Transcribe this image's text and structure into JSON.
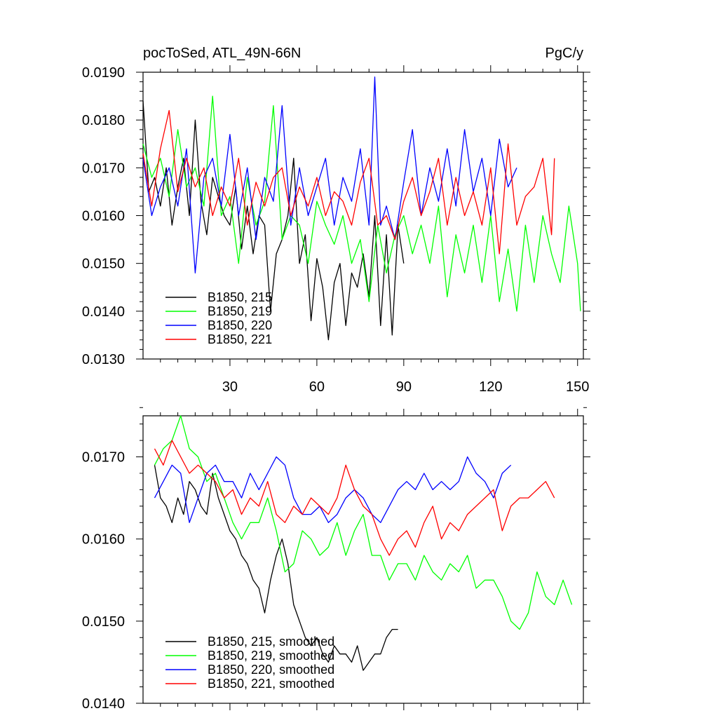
{
  "figure": {
    "left_title": "pocToSed, ATL_49N-66N",
    "right_title": "PgC/y"
  },
  "chart_data": [
    {
      "type": "line",
      "title": "pocToSed, ATL_49N-66N",
      "units": "PgC/y",
      "xlim": [
        0,
        152
      ],
      "ylim": [
        0.013,
        0.019
      ],
      "xticks": [
        30,
        60,
        90,
        120,
        150
      ],
      "xtick_labels": [
        "30",
        "60",
        "90",
        "120",
        "150"
      ],
      "yticks": [
        0.013,
        0.014,
        0.015,
        0.016,
        0.017,
        0.018,
        0.019
      ],
      "ytick_labels": [
        "0.0130",
        "0.0140",
        "0.0150",
        "0.0160",
        "0.0170",
        "0.0180",
        "0.0190"
      ],
      "legend_position": "bottom-left",
      "series": [
        {
          "name": "B1850, 215",
          "color": "#000000",
          "x": [
            0,
            2,
            4,
            6,
            8,
            10,
            12,
            14,
            16,
            18,
            20,
            22,
            24,
            26,
            28,
            30,
            32,
            34,
            36,
            38,
            40,
            42,
            44,
            46,
            48,
            50,
            52,
            54,
            56,
            58,
            60,
            62,
            64,
            66,
            68,
            70,
            72,
            74,
            76,
            78,
            80,
            82,
            84,
            86,
            88,
            90
          ],
          "y": [
            0.0184,
            0.0165,
            0.0168,
            0.0162,
            0.017,
            0.0158,
            0.0166,
            0.0172,
            0.016,
            0.018,
            0.0163,
            0.0156,
            0.0168,
            0.0164,
            0.016,
            0.0158,
            0.0166,
            0.0153,
            0.0162,
            0.0152,
            0.016,
            0.0158,
            0.014,
            0.0152,
            0.0155,
            0.016,
            0.0172,
            0.015,
            0.0156,
            0.0138,
            0.0151,
            0.0145,
            0.0134,
            0.0146,
            0.015,
            0.0137,
            0.0148,
            0.0145,
            0.0152,
            0.0143,
            0.016,
            0.0137,
            0.0156,
            0.0135,
            0.0158,
            0.015
          ]
        },
        {
          "name": "B1850, 219",
          "color": "#00ff00",
          "x": [
            0,
            3,
            6,
            9,
            12,
            15,
            18,
            21,
            24,
            27,
            30,
            33,
            36,
            39,
            42,
            45,
            48,
            51,
            54,
            57,
            60,
            63,
            66,
            69,
            72,
            75,
            78,
            81,
            84,
            87,
            90,
            93,
            96,
            99,
            102,
            105,
            108,
            111,
            114,
            117,
            120,
            123,
            126,
            129,
            132,
            135,
            138,
            141,
            144,
            147,
            150,
            151
          ],
          "y": [
            0.0175,
            0.0168,
            0.0172,
            0.0164,
            0.0178,
            0.0166,
            0.017,
            0.0162,
            0.0185,
            0.016,
            0.0164,
            0.015,
            0.0168,
            0.0158,
            0.0163,
            0.0183,
            0.0155,
            0.016,
            0.0158,
            0.015,
            0.0163,
            0.0158,
            0.0154,
            0.016,
            0.015,
            0.0155,
            0.0142,
            0.0158,
            0.0148,
            0.0156,
            0.016,
            0.0152,
            0.0158,
            0.015,
            0.0162,
            0.0143,
            0.0156,
            0.0148,
            0.0158,
            0.0146,
            0.016,
            0.0142,
            0.0153,
            0.014,
            0.0158,
            0.0146,
            0.016,
            0.0152,
            0.0146,
            0.0162,
            0.015,
            0.014
          ]
        },
        {
          "name": "B1850, 220",
          "color": "#0000ff",
          "x": [
            0,
            3,
            6,
            9,
            12,
            15,
            18,
            21,
            24,
            27,
            30,
            33,
            36,
            39,
            42,
            45,
            48,
            51,
            54,
            57,
            60,
            63,
            66,
            69,
            72,
            75,
            78,
            80,
            82,
            84,
            87,
            90,
            93,
            96,
            99,
            102,
            105,
            108,
            111,
            114,
            117,
            120,
            123,
            126,
            129
          ],
          "y": [
            0.0172,
            0.016,
            0.0166,
            0.017,
            0.0162,
            0.0174,
            0.0148,
            0.0168,
            0.0172,
            0.0162,
            0.0177,
            0.016,
            0.017,
            0.0155,
            0.0168,
            0.0163,
            0.0183,
            0.0158,
            0.017,
            0.016,
            0.0166,
            0.0172,
            0.0158,
            0.0168,
            0.0163,
            0.0174,
            0.0158,
            0.0189,
            0.0158,
            0.0162,
            0.0155,
            0.0167,
            0.0178,
            0.016,
            0.017,
            0.0163,
            0.0174,
            0.0162,
            0.0178,
            0.0165,
            0.0172,
            0.016,
            0.0176,
            0.0166,
            0.017
          ]
        },
        {
          "name": "B1850, 221",
          "color": "#ff0000",
          "x": [
            0,
            3,
            6,
            9,
            12,
            15,
            18,
            21,
            24,
            27,
            30,
            33,
            36,
            39,
            42,
            45,
            48,
            51,
            54,
            57,
            60,
            63,
            66,
            69,
            72,
            75,
            78,
            81,
            84,
            87,
            90,
            93,
            96,
            99,
            102,
            105,
            108,
            111,
            114,
            117,
            120,
            123,
            126,
            129,
            132,
            135,
            138,
            141,
            142
          ],
          "y": [
            0.0173,
            0.0162,
            0.0174,
            0.0182,
            0.0165,
            0.0172,
            0.0166,
            0.017,
            0.016,
            0.0166,
            0.0162,
            0.0172,
            0.0158,
            0.0167,
            0.0162,
            0.0168,
            0.017,
            0.016,
            0.0166,
            0.0162,
            0.0168,
            0.016,
            0.0165,
            0.0163,
            0.0158,
            0.0167,
            0.0172,
            0.0158,
            0.016,
            0.0155,
            0.0163,
            0.0168,
            0.016,
            0.0165,
            0.0172,
            0.0158,
            0.0168,
            0.016,
            0.0165,
            0.0158,
            0.017,
            0.0152,
            0.0175,
            0.0158,
            0.0164,
            0.0166,
            0.0172,
            0.0156,
            0.0172
          ]
        }
      ]
    },
    {
      "type": "line",
      "xlim": [
        0,
        152
      ],
      "ylim": [
        0.014,
        0.0175
      ],
      "xticks": [
        30,
        60,
        90,
        120,
        150
      ],
      "yticks": [
        0.014,
        0.015,
        0.016,
        0.017
      ],
      "ytick_labels": [
        "0.0140",
        "0.0150",
        "0.0160",
        "0.0170"
      ],
      "legend_position": "bottom-left",
      "series": [
        {
          "name": "B1850, 215, smoothed",
          "color": "#000000",
          "x": [
            4,
            6,
            8,
            10,
            12,
            14,
            16,
            18,
            20,
            22,
            24,
            26,
            28,
            30,
            32,
            34,
            36,
            38,
            40,
            42,
            44,
            46,
            48,
            50,
            52,
            54,
            56,
            58,
            60,
            62,
            64,
            66,
            68,
            70,
            72,
            74,
            76,
            78,
            80,
            82,
            84,
            86,
            88
          ],
          "y": [
            0.0169,
            0.0165,
            0.0164,
            0.0162,
            0.0165,
            0.0163,
            0.0167,
            0.0166,
            0.0164,
            0.0163,
            0.0168,
            0.0165,
            0.0163,
            0.0161,
            0.016,
            0.0158,
            0.0157,
            0.0155,
            0.0154,
            0.0151,
            0.0155,
            0.0158,
            0.016,
            0.0157,
            0.0152,
            0.015,
            0.0148,
            0.0147,
            0.0148,
            0.0146,
            0.0145,
            0.0147,
            0.0146,
            0.0146,
            0.0145,
            0.0147,
            0.0144,
            0.0145,
            0.0146,
            0.0146,
            0.0148,
            0.0149,
            0.0149
          ]
        },
        {
          "name": "B1850, 219, smoothed",
          "color": "#00ff00",
          "x": [
            4,
            7,
            10,
            13,
            16,
            19,
            22,
            25,
            28,
            31,
            34,
            37,
            40,
            43,
            46,
            49,
            52,
            55,
            58,
            61,
            64,
            67,
            70,
            73,
            76,
            79,
            82,
            85,
            88,
            91,
            94,
            97,
            100,
            103,
            106,
            109,
            112,
            115,
            118,
            121,
            124,
            127,
            130,
            133,
            136,
            139,
            142,
            145,
            148
          ],
          "y": [
            0.0169,
            0.0171,
            0.0172,
            0.0175,
            0.0171,
            0.017,
            0.0167,
            0.0168,
            0.0165,
            0.0162,
            0.016,
            0.0162,
            0.0162,
            0.0165,
            0.0161,
            0.0156,
            0.0157,
            0.0161,
            0.016,
            0.0158,
            0.0159,
            0.0162,
            0.0158,
            0.0161,
            0.0163,
            0.0158,
            0.0158,
            0.0155,
            0.0157,
            0.0157,
            0.0155,
            0.0158,
            0.0156,
            0.0155,
            0.0157,
            0.0156,
            0.0158,
            0.0154,
            0.0155,
            0.0155,
            0.0153,
            0.015,
            0.0149,
            0.0151,
            0.0156,
            0.0153,
            0.0152,
            0.0155,
            0.0152
          ]
        },
        {
          "name": "B1850, 220, smoothed",
          "color": "#0000ff",
          "x": [
            4,
            7,
            10,
            13,
            16,
            19,
            22,
            25,
            28,
            31,
            34,
            37,
            40,
            43,
            46,
            49,
            52,
            55,
            58,
            61,
            64,
            67,
            70,
            73,
            76,
            79,
            82,
            85,
            88,
            91,
            94,
            97,
            100,
            103,
            106,
            109,
            112,
            115,
            118,
            121,
            124,
            127
          ],
          "y": [
            0.0165,
            0.0167,
            0.0169,
            0.0168,
            0.0162,
            0.0165,
            0.0168,
            0.0169,
            0.0167,
            0.0167,
            0.0165,
            0.0168,
            0.0166,
            0.0168,
            0.017,
            0.0169,
            0.0165,
            0.0163,
            0.0163,
            0.0164,
            0.0162,
            0.0163,
            0.0165,
            0.0166,
            0.0165,
            0.0163,
            0.0162,
            0.0164,
            0.0166,
            0.0167,
            0.0166,
            0.0168,
            0.0166,
            0.0167,
            0.0166,
            0.0167,
            0.017,
            0.0168,
            0.0167,
            0.0165,
            0.0168,
            0.0169
          ]
        },
        {
          "name": "B1850, 221, smoothed",
          "color": "#ff0000",
          "x": [
            4,
            7,
            10,
            13,
            16,
            19,
            22,
            25,
            28,
            31,
            34,
            37,
            40,
            43,
            46,
            49,
            52,
            55,
            58,
            61,
            64,
            67,
            70,
            73,
            76,
            79,
            82,
            85,
            88,
            91,
            94,
            97,
            100,
            103,
            106,
            109,
            112,
            115,
            118,
            121,
            124,
            127,
            130,
            133,
            136,
            139,
            142
          ],
          "y": [
            0.0171,
            0.0169,
            0.0172,
            0.017,
            0.0168,
            0.0169,
            0.0168,
            0.0167,
            0.0165,
            0.0166,
            0.0163,
            0.0165,
            0.0164,
            0.0167,
            0.0163,
            0.0162,
            0.0164,
            0.0163,
            0.0165,
            0.0164,
            0.0163,
            0.0165,
            0.0169,
            0.0166,
            0.0164,
            0.0163,
            0.016,
            0.0158,
            0.016,
            0.0161,
            0.0159,
            0.0162,
            0.0164,
            0.016,
            0.0162,
            0.0161,
            0.0163,
            0.0164,
            0.0165,
            0.0166,
            0.0161,
            0.0164,
            0.0165,
            0.0165,
            0.0166,
            0.0167,
            0.0165
          ]
        }
      ]
    }
  ]
}
